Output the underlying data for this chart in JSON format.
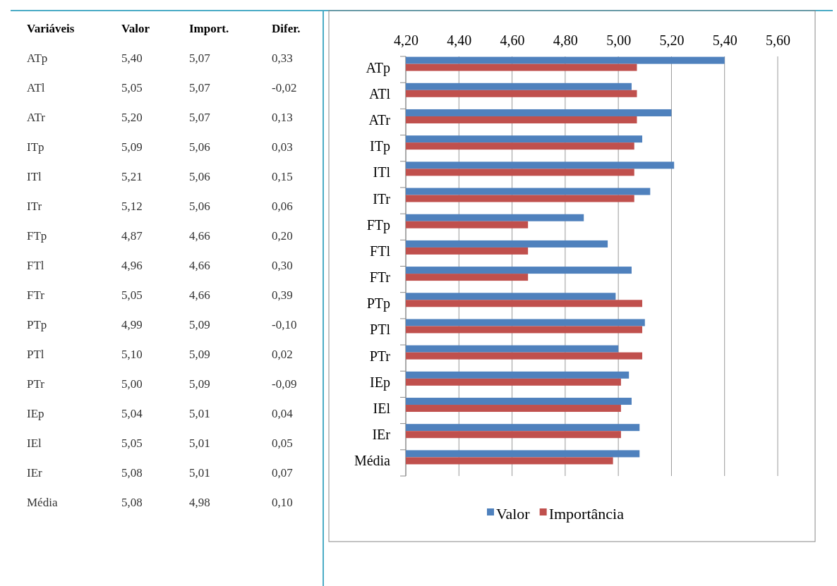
{
  "chart_data": [
    {
      "type": "other",
      "ylabel": "Variáveis",
      "categories": [
        "ATp",
        "ATl",
        "ATr",
        "ITp",
        "ITl",
        "ITr",
        "FTp",
        "FTl",
        "FTr",
        "PTp",
        "PTl",
        "PTr",
        "IEp",
        "IEl",
        "IEr",
        "Média"
      ],
      "series": [
        {
          "name": "Valor",
          "values": [
            5.4,
            5.05,
            5.2,
            5.09,
            5.21,
            5.12,
            4.87,
            4.96,
            5.05,
            4.99,
            5.1,
            5.0,
            5.04,
            5.05,
            5.08,
            5.08
          ],
          "value_labels": [
            "5,40",
            "5,05",
            "5,20",
            "5,09",
            "5,21",
            "5,12",
            "4,87",
            "4,96",
            "5,05",
            "4,99",
            "5,10",
            "5,00",
            "5,04",
            "5,05",
            "5,08",
            "5,08"
          ]
        },
        {
          "name": "Import.",
          "values": [
            5.07,
            5.07,
            5.07,
            5.06,
            5.06,
            5.06,
            4.66,
            4.66,
            4.66,
            5.09,
            5.09,
            5.09,
            5.01,
            5.01,
            5.01,
            4.98
          ],
          "value_labels": [
            "5,07",
            "5,07",
            "5,07",
            "5,06",
            "5,06",
            "5,06",
            "4,66",
            "4,66",
            "4,66",
            "5,09",
            "5,09",
            "5,09",
            "5,01",
            "5,01",
            "5,01",
            "4,98"
          ]
        },
        {
          "name": "Difer.",
          "values": [
            0.33,
            -0.02,
            0.13,
            0.03,
            0.15,
            0.06,
            0.2,
            0.3,
            0.39,
            -0.1,
            0.02,
            -0.09,
            0.04,
            0.05,
            0.07,
            0.1
          ],
          "value_labels": [
            "0,33",
            "-0,02",
            "0,13",
            "0,03",
            "0,15",
            "0,06",
            "0,20",
            "0,30",
            "0,39",
            "-0,10",
            "0,02",
            "-0,09",
            "0,04",
            "0,05",
            "0,07",
            "0,10"
          ]
        }
      ]
    },
    {
      "type": "bar",
      "orientation": "horizontal",
      "categories": [
        "ATp",
        "ATl",
        "ATr",
        "ITp",
        "ITl",
        "ITr",
        "FTp",
        "FTl",
        "FTr",
        "PTp",
        "PTl",
        "PTr",
        "IEp",
        "IEl",
        "IEr",
        "Média"
      ],
      "xlim": [
        4.2,
        5.6
      ],
      "xticks": [
        {
          "value": 4.2,
          "label": "4,20"
        },
        {
          "value": 4.4,
          "label": "4,40"
        },
        {
          "value": 4.6,
          "label": "4,60"
        },
        {
          "value": 4.8,
          "label": "4,80"
        },
        {
          "value": 5.0,
          "label": "5,00"
        },
        {
          "value": 5.2,
          "label": "5,20"
        },
        {
          "value": 5.4,
          "label": "5,40"
        },
        {
          "value": 5.6,
          "label": "5,60"
        }
      ],
      "grid": "x",
      "legend": "bottom",
      "series": [
        {
          "name": "Valor",
          "color": "#4f81bd",
          "values": [
            5.4,
            5.05,
            5.2,
            5.09,
            5.21,
            5.12,
            4.87,
            4.96,
            5.05,
            4.99,
            5.1,
            5.0,
            5.04,
            5.05,
            5.08,
            5.08
          ]
        },
        {
          "name": "Importância",
          "color": "#c0504d",
          "values": [
            5.07,
            5.07,
            5.07,
            5.06,
            5.06,
            5.06,
            4.66,
            4.66,
            4.66,
            5.09,
            5.09,
            5.09,
            5.01,
            5.01,
            5.01,
            4.98
          ]
        }
      ]
    }
  ]
}
